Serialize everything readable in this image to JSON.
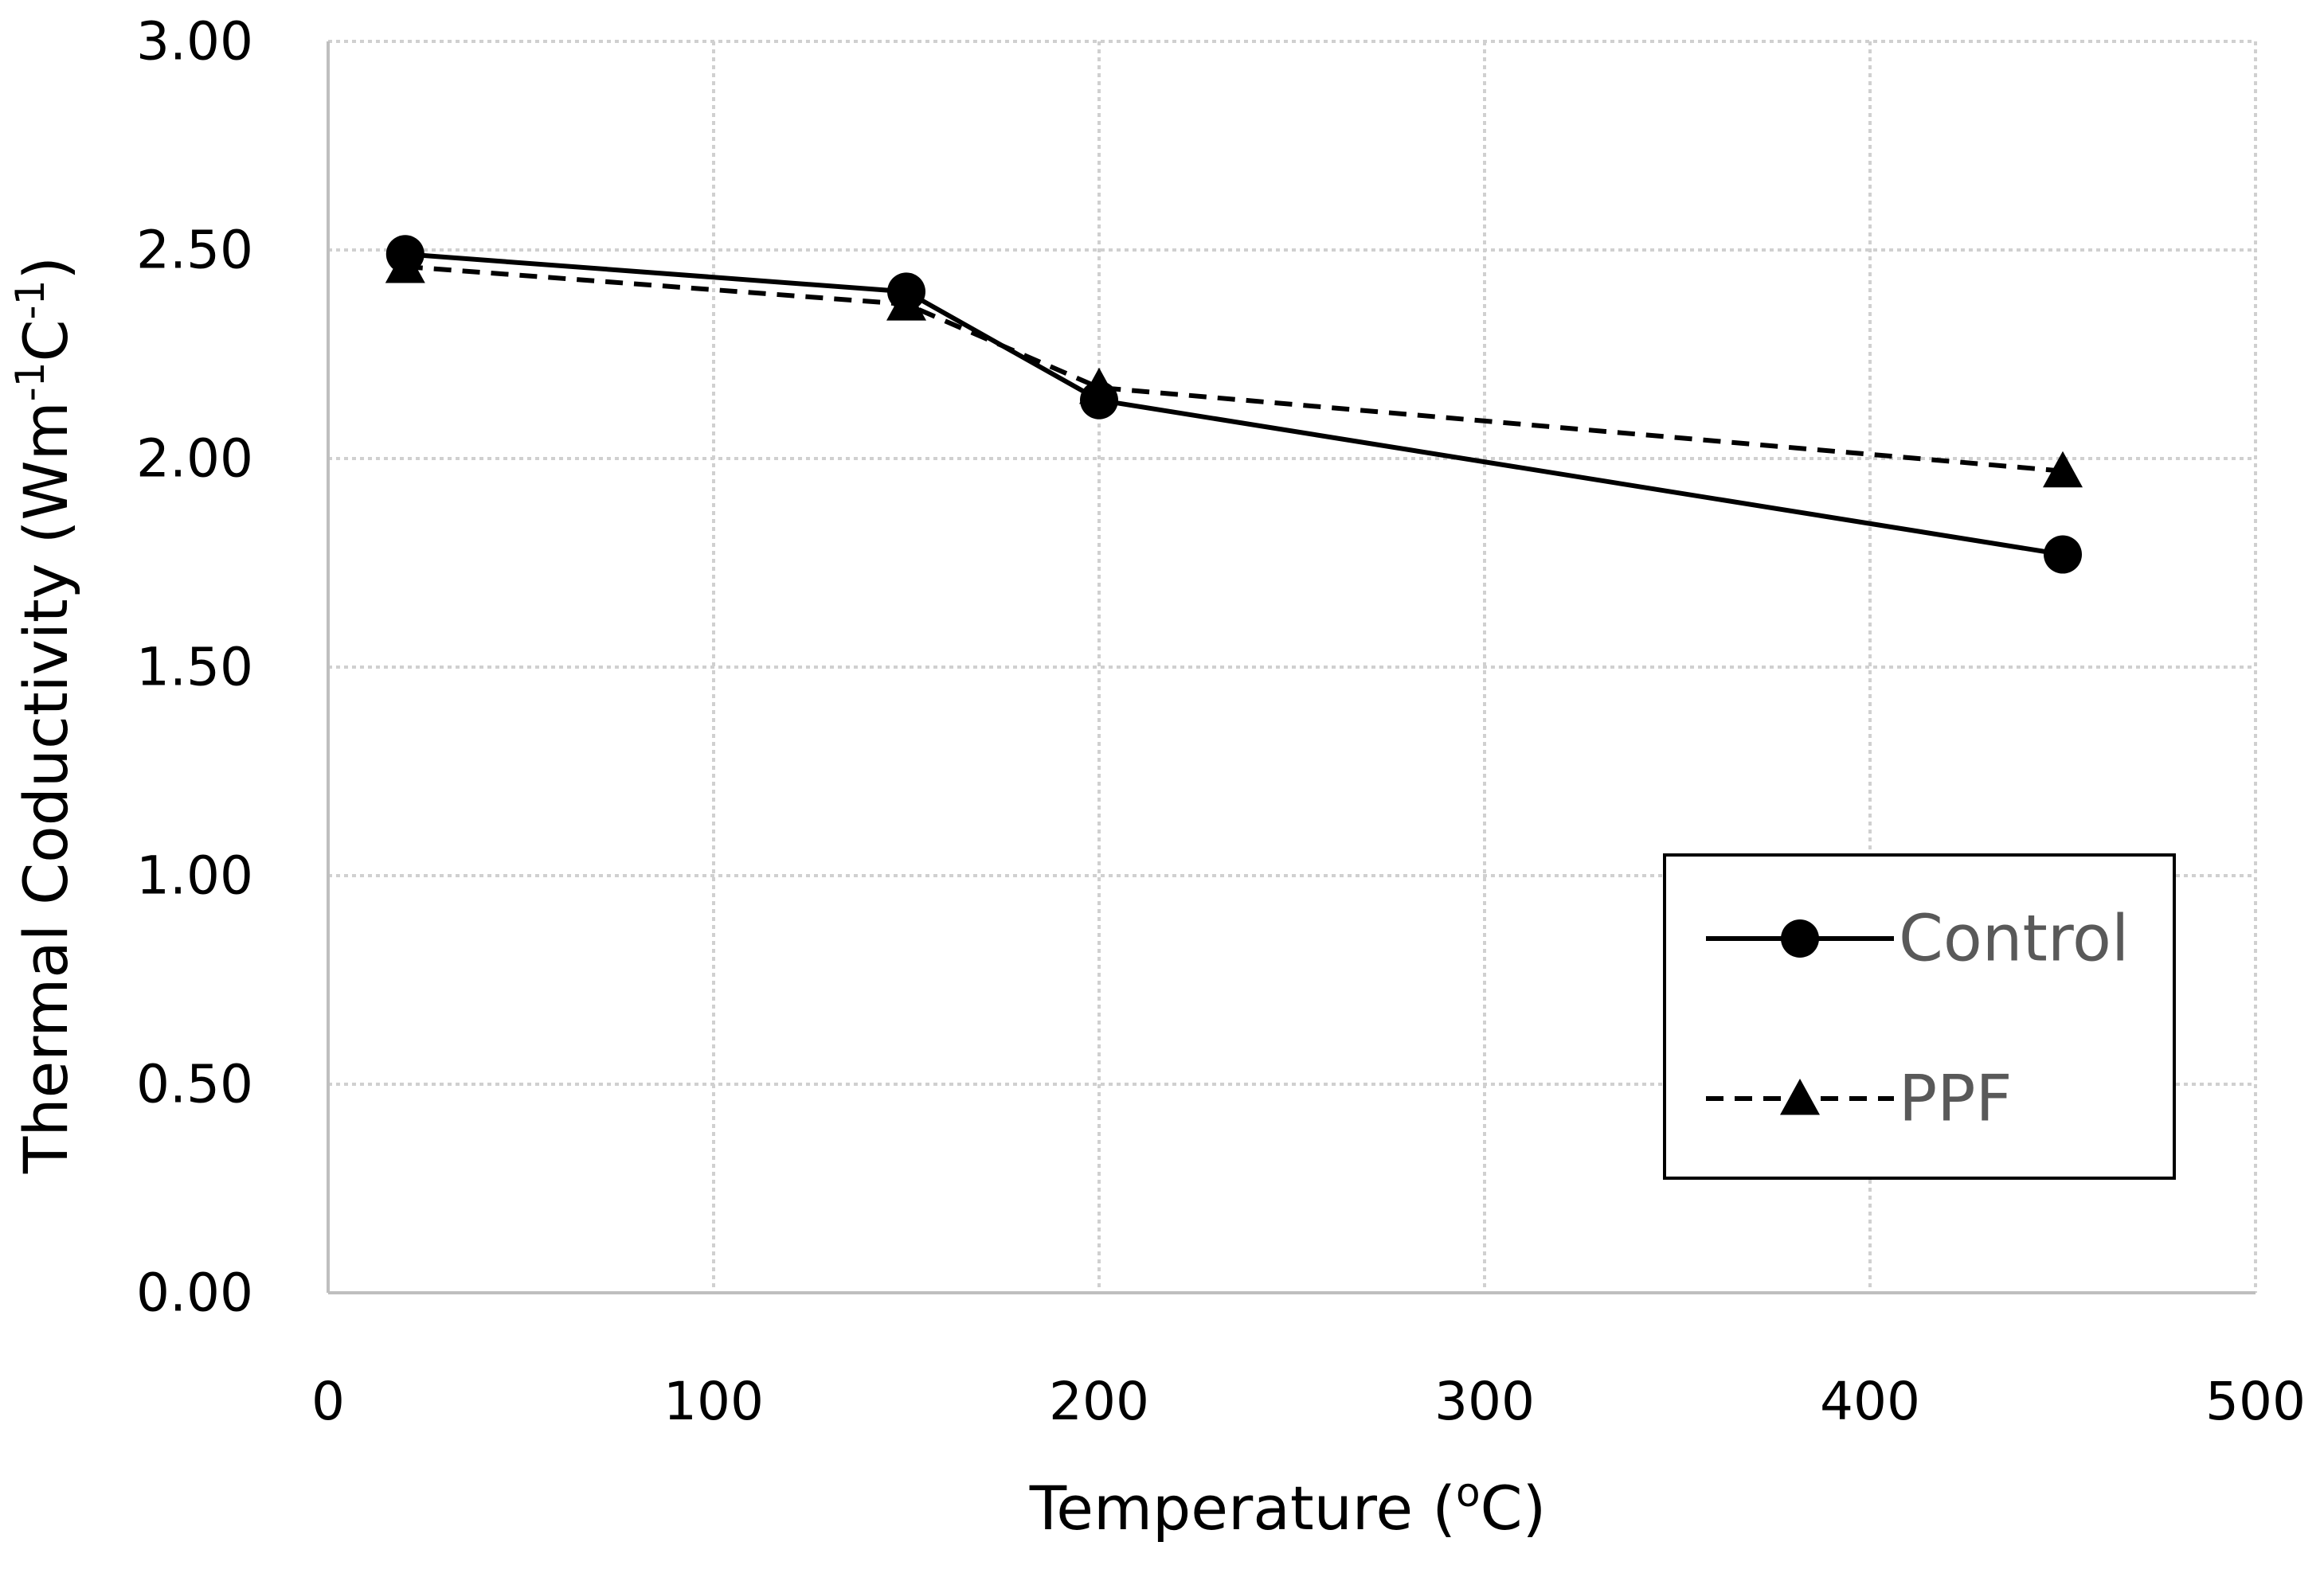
{
  "chart_data": {
    "type": "line",
    "title": "",
    "xlabel": "Temperature (oC)",
    "xlabel_parts": {
      "pre": "Temperature (",
      "sup": "o",
      "post": "C)"
    },
    "ylabel": "Thermal Coductivity (Wm-1C-1)",
    "ylabel_parts": {
      "pre": "Thermal Coductivity (Wm",
      "sup1": "-1",
      "mid": "C",
      "sup2": "-1",
      "post": ")"
    },
    "xlim": [
      0,
      500
    ],
    "ylim": [
      0,
      3
    ],
    "x_ticks": [
      0,
      100,
      200,
      300,
      400,
      500
    ],
    "x_tick_labels": [
      "0",
      "100",
      "200",
      "300",
      "400",
      "500"
    ],
    "y_ticks": [
      0,
      0.5,
      1,
      1.5,
      2,
      2.5,
      3
    ],
    "y_tick_labels": [
      "0.00",
      "0.50",
      "1.00",
      "1.50",
      "2.00",
      "2.50",
      "3.00"
    ],
    "grid": true,
    "legend_position": "bottom-right",
    "series": [
      {
        "name": "Control",
        "marker": "circle",
        "line_style": "solid",
        "color": "#000000",
        "x": [
          20,
          150,
          200,
          450
        ],
        "values": [
          2.49,
          2.4,
          2.14,
          1.77
        ]
      },
      {
        "name": "PPF",
        "marker": "triangle",
        "line_style": "dashed",
        "color": "#000000",
        "x": [
          20,
          150,
          200,
          450
        ],
        "values": [
          2.46,
          2.37,
          2.17,
          1.97
        ]
      }
    ]
  }
}
